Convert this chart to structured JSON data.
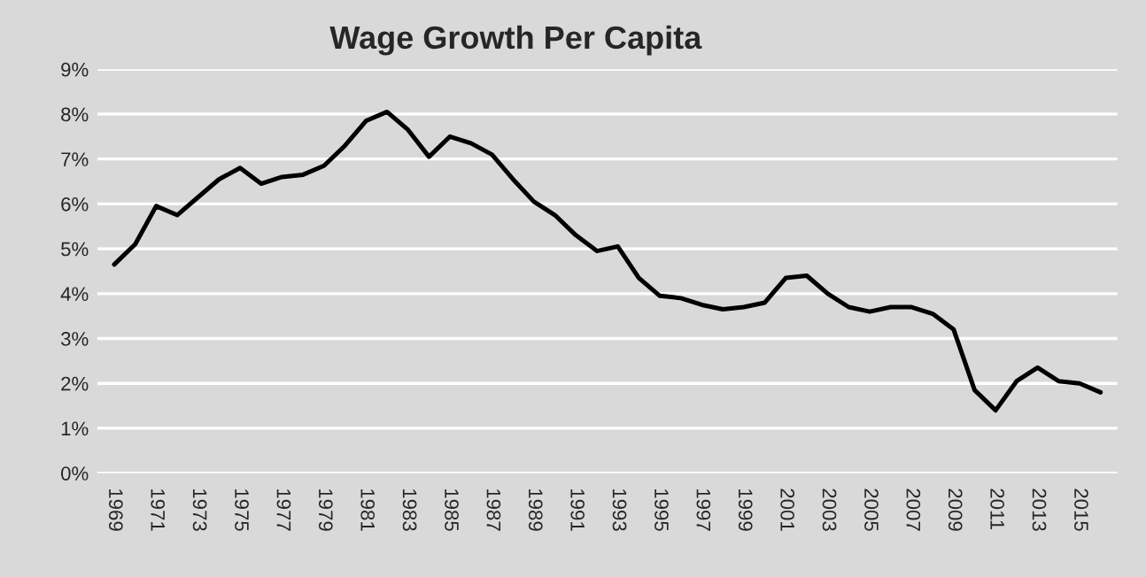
{
  "chart_data": {
    "type": "line",
    "title": "Wage Growth Per Capita",
    "categories": [
      "1969",
      null,
      "1971",
      null,
      "1973",
      null,
      "1975",
      null,
      "1977",
      null,
      "1979",
      null,
      "1981",
      null,
      "1983",
      null,
      "1985",
      null,
      "1987",
      null,
      "1989",
      null,
      "1991",
      null,
      "1993",
      null,
      "1995",
      null,
      "1997",
      null,
      "1999",
      null,
      "2001",
      null,
      "2003",
      null,
      "2005",
      null,
      "2007",
      null,
      "2009",
      null,
      "2011",
      null,
      "2013",
      null,
      "2015",
      null
    ],
    "series": [
      {
        "color": "#000000",
        "values": [
          4.65,
          5.1,
          5.95,
          5.75,
          6.15,
          6.55,
          6.8,
          6.45,
          6.6,
          6.65,
          6.85,
          7.3,
          7.85,
          8.05,
          7.65,
          7.05,
          7.5,
          7.35,
          7.1,
          6.55,
          6.05,
          5.75,
          5.3,
          4.95,
          5.05,
          4.35,
          3.95,
          3.9,
          3.75,
          3.65,
          3.7,
          3.8,
          4.35,
          4.4,
          4.0,
          3.7,
          3.6,
          3.7,
          3.7,
          3.55,
          3.2,
          1.85,
          1.4,
          2.05,
          2.35,
          2.05,
          2.0,
          1.8
        ]
      }
    ],
    "ylim": [
      0,
      9
    ],
    "yticks": [
      {
        "value": 0,
        "label": "0%"
      },
      {
        "value": 1,
        "label": "1%"
      },
      {
        "value": 2,
        "label": "2%"
      },
      {
        "value": 3,
        "label": "3%"
      },
      {
        "value": 4,
        "label": "4%"
      },
      {
        "value": 5,
        "label": "5%"
      },
      {
        "value": 6,
        "label": "6%"
      },
      {
        "value": 7,
        "label": "7%"
      },
      {
        "value": 8,
        "label": "8%"
      },
      {
        "value": 9,
        "label": "9%"
      }
    ],
    "grid": "y",
    "legend": false,
    "marker": "none",
    "line_style": "solid"
  }
}
